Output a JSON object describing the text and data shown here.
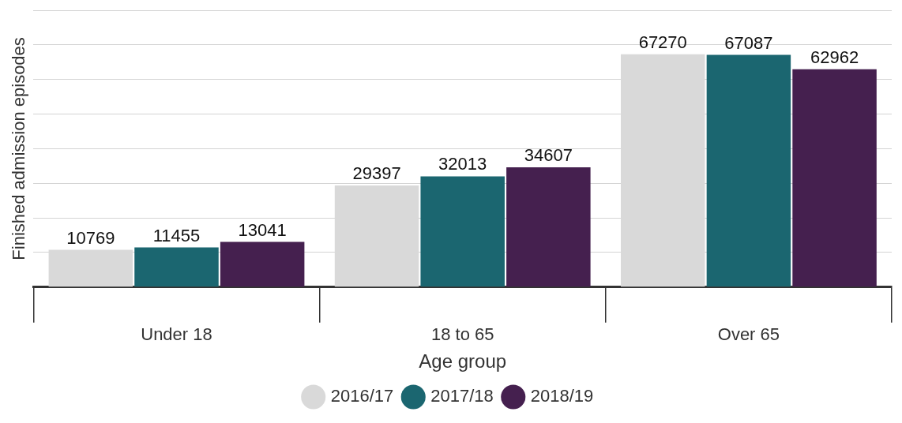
{
  "chart_data": {
    "type": "bar",
    "xlabel": "Age group",
    "ylabel": "Finished admission episodes",
    "categories": [
      "Under 18",
      "18 to 65",
      "Over 65"
    ],
    "series": [
      {
        "name": "2016/17",
        "color": "#d9d9d9",
        "values": [
          10769,
          29397,
          67270
        ]
      },
      {
        "name": "2017/18",
        "color": "#1b6670",
        "values": [
          11455,
          32013,
          67087
        ]
      },
      {
        "name": "2018/19",
        "color": "#45204f",
        "values": [
          13041,
          34607,
          62962
        ]
      }
    ],
    "ylim": [
      0,
      80000
    ],
    "yticks": [
      {
        "value": 0,
        "label": null
      },
      {
        "value": 10000,
        "label": null
      },
      {
        "value": 20000,
        "label": null
      },
      {
        "value": 30000,
        "label": null
      },
      {
        "value": 40000,
        "label": null
      },
      {
        "value": 50000,
        "label": null
      },
      {
        "value": 60000,
        "label": null
      },
      {
        "value": 70000,
        "label": null
      },
      {
        "value": 80000,
        "label": null
      }
    ],
    "grid": "y",
    "legend": "bottom",
    "data_labels": true,
    "tick_labels": "x"
  }
}
